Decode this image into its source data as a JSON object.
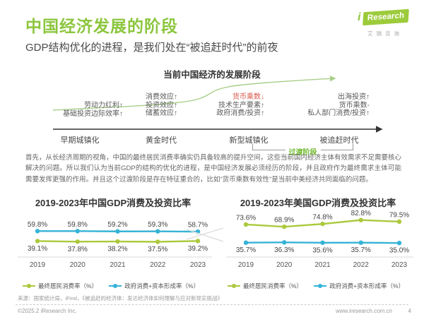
{
  "page": {
    "title": "中国经济发展的阶段",
    "subtitle": "GDP结构优化的进程，是我们处在“被追赶时代”的前夜",
    "source": "来源：国家统计局，iFind，《被追赶的经济体：发达经济体如何理解与应对新现实挑战》",
    "copyright": "©2025.2 iResearch Inc.",
    "website": "www.iresearch.com.cn",
    "page_number": "4"
  },
  "logo": {
    "i": "i",
    "research": "Research",
    "cn": "艾瑞咨询"
  },
  "diagram": {
    "title": "当前中国经济的发展阶段",
    "transition_label": "过渡阶段",
    "stages": [
      {
        "name": "早期城镇化",
        "factors": [
          {
            "text": "劳动力红利↑"
          },
          {
            "text": "基础投资边际效率↑"
          }
        ]
      },
      {
        "name": "黄金时代",
        "factors": [
          {
            "text": "消费效应↑"
          },
          {
            "text": "投资效应↑"
          },
          {
            "text": "储蓄效应↑"
          }
        ]
      },
      {
        "name": "新型城镇化",
        "factors": [
          {
            "text": "货币乘数↓",
            "color": "#d9594a"
          },
          {
            "text": "技术生产要素↑"
          },
          {
            "text": "政府消费/投资↑"
          }
        ]
      },
      {
        "name": "被追赶时代",
        "factors": [
          {
            "text": "出海投资↑"
          },
          {
            "text": "货币乘数-"
          },
          {
            "text": "私人部门消费/投资↑"
          }
        ]
      }
    ]
  },
  "paragraph": "首先，从长经济周期的视角，中国的最终居民消费率确实仍具备较高的提升空间，这些当前国内经济主体有效需求不足需要核心解决的问题。所以我们认为当前GDP的结构的优化的进程，是中国经济发展必须经历的阶段，并且政府作为最终需求主体可能需要发挥更强的作用。并且这个过渡阶段是存在特征重合的，比如“货币乘数有效性”是当前中美经济共同面临的问题。",
  "colors": {
    "accent_green": "#8cc63e",
    "line_green": "#abc93d",
    "line_blue": "#36b3d6",
    "red_arrow": "#d9594a",
    "curve_green": "#a9cf8a"
  },
  "chart_data": [
    {
      "type": "line",
      "title": "2019-2023年中国GDP消费及投资比率",
      "categories": [
        "2019",
        "2020",
        "2021",
        "2022",
        "2023"
      ],
      "ylabel": "占GDP比率（%）",
      "series": [
        {
          "name": "最终居民消费率（%）",
          "color": "#abc93d",
          "values": [
            39.1,
            37.8,
            38.2,
            37.5,
            39.2
          ],
          "labels": "below"
        },
        {
          "name": "政府消费+资本形成率（%）",
          "color": "#36b3d6",
          "values": [
            59.8,
            59.8,
            59.2,
            59.3,
            58.7
          ],
          "labels": "above"
        }
      ]
    },
    {
      "type": "line",
      "title": "2019-2023年美国GDP消费及投资比率",
      "categories": [
        "2019",
        "2020",
        "2021",
        "2022",
        "2023"
      ],
      "ylabel": "占GDP比率（%）",
      "series": [
        {
          "name": "最终居民消费率（%）",
          "color": "#abc93d",
          "values": [
            73.6,
            68.9,
            74.8,
            82.8,
            79.5
          ],
          "labels": "above"
        },
        {
          "name": "政府消费+资本形成率（%）",
          "color": "#36b3d6",
          "values": [
            35.7,
            36.3,
            35.6,
            35.7,
            35.0
          ],
          "labels": "below"
        }
      ]
    }
  ]
}
